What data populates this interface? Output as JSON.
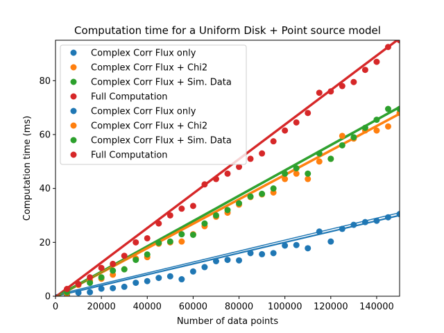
{
  "chart_data": {
    "type": "scatter",
    "title": "Computation time for a Uniform Disk + Point source model",
    "xlabel": "Number of data points",
    "ylabel": "Computation time (ms)",
    "xlim": [
      0,
      150000
    ],
    "ylim": [
      0,
      95
    ],
    "x_ticks": [
      0,
      20000,
      40000,
      60000,
      80000,
      100000,
      120000,
      140000
    ],
    "y_ticks": [
      0,
      20,
      40,
      60,
      80
    ],
    "grid": false,
    "legend_position": "top-left",
    "x": [
      5000,
      10000,
      15000,
      20000,
      25000,
      30000,
      35000,
      40000,
      45000,
      50000,
      55000,
      60000,
      65000,
      70000,
      75000,
      80000,
      85000,
      90000,
      95000,
      100000,
      105000,
      110000,
      115000,
      120000,
      125000,
      130000,
      135000,
      140000,
      145000,
      150000
    ],
    "series": [
      {
        "name": "Complex Corr Flux only",
        "color": "#1f77b4",
        "group": 1,
        "values": [
          0.5,
          1.3,
          1.5,
          2.8,
          3.0,
          3.5,
          5.0,
          5.6,
          6.8,
          7.4,
          6.3,
          9.2,
          10.8,
          13.0,
          13.5,
          13.3,
          16.0,
          15.6,
          16.0,
          18.8,
          19.0,
          17.8,
          24.0,
          20.3,
          25.0,
          26.5,
          27.5,
          28.0,
          29.3,
          30.5
        ],
        "fit": [
          [
            0,
            0.0
          ],
          [
            150000,
            30.0
          ]
        ]
      },
      {
        "name": "Complex Corr Flux + Chi2",
        "color": "#ff7f0e",
        "group": 1,
        "values": [
          1.0,
          4.2,
          5.8,
          6.5,
          8.0,
          10.0,
          14.0,
          14.5,
          19.5,
          20.0,
          20.3,
          23.0,
          26.0,
          29.5,
          31.0,
          34.0,
          36.8,
          37.8,
          38.5,
          43.5,
          45.5,
          43.5,
          50.0,
          51.0,
          59.5,
          58.5,
          61.5,
          61.5,
          63.0,
          68.0
        ],
        "fit": [
          [
            0,
            -0.5
          ],
          [
            150000,
            67.5
          ]
        ]
      },
      {
        "name": "Complex Corr Flux + Sim. Data",
        "color": "#2ca02c",
        "group": 1,
        "values": [
          1.5,
          4.5,
          5.0,
          7.0,
          9.5,
          10.0,
          13.5,
          15.5,
          19.8,
          20.3,
          23.0,
          22.8,
          27.0,
          30.0,
          32.0,
          34.5,
          37.0,
          38.0,
          40.0,
          45.5,
          47.5,
          45.5,
          53.0,
          51.0,
          56.0,
          59.0,
          62.5,
          65.5,
          69.5,
          69.5
        ],
        "fit": [
          [
            0,
            -0.5
          ],
          [
            150000,
            70.0
          ]
        ]
      },
      {
        "name": "Full Computation",
        "color": "#d62728",
        "group": 1,
        "values": [
          2.7,
          4.5,
          7.0,
          10.5,
          12.0,
          15.0,
          20.0,
          21.5,
          27.0,
          30.0,
          32.5,
          33.5,
          41.5,
          43.5,
          45.5,
          48.0,
          51.0,
          53.0,
          57.5,
          61.5,
          64.5,
          68.0,
          75.5,
          76.0,
          78.0,
          79.5,
          84.0,
          87.0,
          92.5,
          95.0
        ],
        "fit": [
          [
            0,
            -0.5
          ],
          [
            150000,
            95.5
          ]
        ]
      },
      {
        "name": "Complex Corr Flux only",
        "color": "#1f77b4",
        "group": 2,
        "values": [],
        "fit": [
          [
            0,
            0.5
          ],
          [
            150000,
            31.0
          ]
        ]
      },
      {
        "name": "Complex Corr Flux + Chi2",
        "color": "#ff7f0e",
        "group": 2,
        "values": [],
        "fit": [
          [
            0,
            0.0
          ],
          [
            150000,
            68.0
          ]
        ]
      },
      {
        "name": "Complex Corr Flux + Sim. Data",
        "color": "#2ca02c",
        "group": 2,
        "values": [],
        "fit": [
          [
            0,
            0.0
          ],
          [
            150000,
            70.5
          ]
        ]
      },
      {
        "name": "Full Computation",
        "color": "#d62728",
        "group": 2,
        "values": [],
        "fit": [
          [
            0,
            0.0
          ],
          [
            150000,
            96.0
          ]
        ]
      }
    ]
  }
}
